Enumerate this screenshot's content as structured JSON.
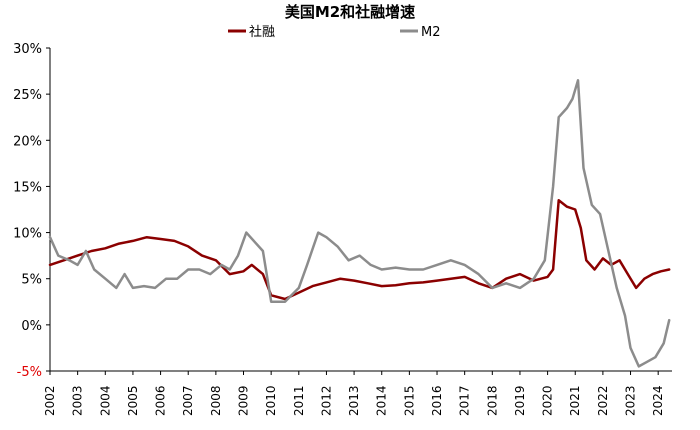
{
  "chart_data": {
    "type": "line",
    "title": "美国M2和社融增速",
    "xlabel": "",
    "ylabel": "",
    "ylim": [
      -5,
      30
    ],
    "xlim": [
      2002.0,
      2024.5
    ],
    "yticks": [
      {
        "value": 30,
        "label": "30%"
      },
      {
        "value": 25,
        "label": "25%"
      },
      {
        "value": 20,
        "label": "20%"
      },
      {
        "value": 15,
        "label": "15%"
      },
      {
        "value": 10,
        "label": "10%"
      },
      {
        "value": 5,
        "label": "5%"
      },
      {
        "value": 0,
        "label": "0%"
      },
      {
        "value": -5,
        "label": "-5%"
      }
    ],
    "xticks": [
      "2002",
      "2003",
      "2004",
      "2005",
      "2006",
      "2007",
      "2008",
      "2009",
      "2010",
      "2011",
      "2012",
      "2013",
      "2014",
      "2015",
      "2016",
      "2017",
      "2018",
      "2019",
      "2020",
      "2021",
      "2022",
      "2023",
      "2024"
    ],
    "legend_position": "top-center",
    "series": [
      {
        "name": "社融",
        "color": "#8b0000",
        "points": [
          [
            2002.0,
            6.5
          ],
          [
            2002.5,
            7.0
          ],
          [
            2003.0,
            7.5
          ],
          [
            2003.5,
            8.0
          ],
          [
            2004.0,
            8.3
          ],
          [
            2004.5,
            8.8
          ],
          [
            2005.0,
            9.1
          ],
          [
            2005.5,
            9.5
          ],
          [
            2006.0,
            9.3
          ],
          [
            2006.5,
            9.1
          ],
          [
            2007.0,
            8.5
          ],
          [
            2007.5,
            7.5
          ],
          [
            2008.0,
            7.0
          ],
          [
            2008.5,
            5.5
          ],
          [
            2009.0,
            5.8
          ],
          [
            2009.3,
            6.5
          ],
          [
            2009.7,
            5.5
          ],
          [
            2010.0,
            3.2
          ],
          [
            2010.5,
            2.8
          ],
          [
            2011.0,
            3.5
          ],
          [
            2011.5,
            4.2
          ],
          [
            2012.0,
            4.6
          ],
          [
            2012.5,
            5.0
          ],
          [
            2013.0,
            4.8
          ],
          [
            2013.5,
            4.5
          ],
          [
            2014.0,
            4.2
          ],
          [
            2014.5,
            4.3
          ],
          [
            2015.0,
            4.5
          ],
          [
            2015.5,
            4.6
          ],
          [
            2016.0,
            4.8
          ],
          [
            2016.5,
            5.0
          ],
          [
            2017.0,
            5.2
          ],
          [
            2017.5,
            4.5
          ],
          [
            2018.0,
            4.0
          ],
          [
            2018.5,
            5.0
          ],
          [
            2019.0,
            5.5
          ],
          [
            2019.5,
            4.8
          ],
          [
            2020.0,
            5.2
          ],
          [
            2020.2,
            6.0
          ],
          [
            2020.4,
            13.5
          ],
          [
            2020.7,
            12.8
          ],
          [
            2021.0,
            12.5
          ],
          [
            2021.2,
            10.5
          ],
          [
            2021.4,
            7.0
          ],
          [
            2021.7,
            6.0
          ],
          [
            2022.0,
            7.2
          ],
          [
            2022.3,
            6.5
          ],
          [
            2022.6,
            7.0
          ],
          [
            2022.9,
            5.5
          ],
          [
            2023.2,
            4.0
          ],
          [
            2023.5,
            5.0
          ],
          [
            2023.8,
            5.5
          ],
          [
            2024.1,
            5.8
          ],
          [
            2024.4,
            6.0
          ]
        ]
      },
      {
        "name": "M2",
        "color": "#8c8c8c",
        "points": [
          [
            2002.0,
            9.5
          ],
          [
            2002.3,
            7.5
          ],
          [
            2002.7,
            7.0
          ],
          [
            2003.0,
            6.5
          ],
          [
            2003.3,
            8.0
          ],
          [
            2003.6,
            6.0
          ],
          [
            2004.0,
            5.0
          ],
          [
            2004.4,
            4.0
          ],
          [
            2004.7,
            5.5
          ],
          [
            2005.0,
            4.0
          ],
          [
            2005.4,
            4.2
          ],
          [
            2005.8,
            4.0
          ],
          [
            2006.2,
            5.0
          ],
          [
            2006.6,
            5.0
          ],
          [
            2007.0,
            6.0
          ],
          [
            2007.4,
            6.0
          ],
          [
            2007.8,
            5.5
          ],
          [
            2008.2,
            6.5
          ],
          [
            2008.5,
            6.0
          ],
          [
            2008.8,
            7.5
          ],
          [
            2009.1,
            10.0
          ],
          [
            2009.4,
            9.0
          ],
          [
            2009.7,
            8.0
          ],
          [
            2010.0,
            2.5
          ],
          [
            2010.5,
            2.5
          ],
          [
            2011.0,
            4.0
          ],
          [
            2011.3,
            6.5
          ],
          [
            2011.7,
            10.0
          ],
          [
            2012.0,
            9.5
          ],
          [
            2012.4,
            8.5
          ],
          [
            2012.8,
            7.0
          ],
          [
            2013.2,
            7.5
          ],
          [
            2013.6,
            6.5
          ],
          [
            2014.0,
            6.0
          ],
          [
            2014.5,
            6.2
          ],
          [
            2015.0,
            6.0
          ],
          [
            2015.5,
            6.0
          ],
          [
            2016.0,
            6.5
          ],
          [
            2016.5,
            7.0
          ],
          [
            2017.0,
            6.5
          ],
          [
            2017.5,
            5.5
          ],
          [
            2018.0,
            4.0
          ],
          [
            2018.5,
            4.5
          ],
          [
            2019.0,
            4.0
          ],
          [
            2019.5,
            5.0
          ],
          [
            2019.9,
            7.0
          ],
          [
            2020.2,
            15.0
          ],
          [
            2020.4,
            22.5
          ],
          [
            2020.7,
            23.5
          ],
          [
            2020.9,
            24.5
          ],
          [
            2021.1,
            26.5
          ],
          [
            2021.3,
            17.0
          ],
          [
            2021.6,
            13.0
          ],
          [
            2021.9,
            12.0
          ],
          [
            2022.2,
            8.0
          ],
          [
            2022.5,
            4.0
          ],
          [
            2022.8,
            1.0
          ],
          [
            2023.0,
            -2.5
          ],
          [
            2023.3,
            -4.5
          ],
          [
            2023.6,
            -4.0
          ],
          [
            2023.9,
            -3.5
          ],
          [
            2024.2,
            -2.0
          ],
          [
            2024.4,
            0.5
          ]
        ]
      }
    ]
  }
}
